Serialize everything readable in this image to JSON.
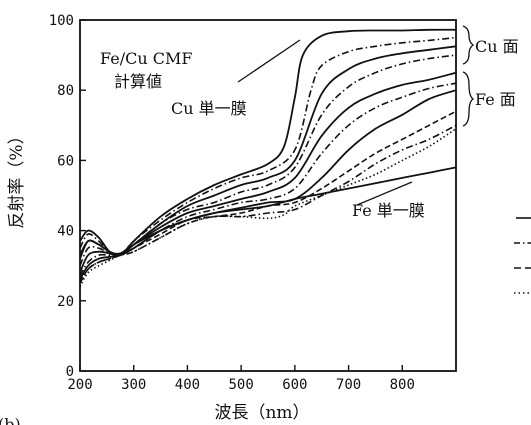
{
  "chart_data": {
    "type": "line",
    "xlabel": "波長（nm）",
    "ylabel": "反射率（%）",
    "xlim": [
      200,
      900
    ],
    "ylim": [
      0,
      100
    ],
    "x_ticks": [
      "200",
      "300",
      "400",
      "500",
      "600",
      "700",
      "800"
    ],
    "y_ticks": [
      "0",
      "20",
      "40",
      "60",
      "80",
      "100"
    ],
    "grid": false,
    "annotations": {
      "computed": "Fe/Cu CMF",
      "computed_line2": "計算値",
      "cu_single": "Cu 単一膜",
      "fe_single": "Fe 単一膜",
      "cu_side": "Cu 面",
      "fe_side": "Fe 面",
      "panel": "(b)"
    },
    "series": [
      {
        "style": "solid",
        "x": [
          200,
          215,
          235,
          255,
          275,
          300,
          350,
          400,
          450,
          500,
          550,
          580,
          600,
          615,
          650,
          700,
          750,
          800,
          850,
          900
        ],
        "y": [
          37,
          40,
          38,
          34,
          33,
          37,
          44,
          49,
          53,
          56,
          59,
          64,
          78,
          90,
          95.5,
          96.8,
          97,
          97,
          97.2,
          97.2
        ]
      },
      {
        "style": "dashdot",
        "x": [
          200,
          215,
          235,
          255,
          275,
          300,
          350,
          400,
          450,
          500,
          550,
          600,
          630,
          650,
          700,
          750,
          800,
          850,
          900
        ],
        "y": [
          35,
          39,
          37,
          34,
          33,
          37,
          43,
          48,
          52,
          55,
          57,
          63,
          80,
          87,
          91,
          92.5,
          93.5,
          94.2,
          95
        ]
      },
      {
        "style": "solid",
        "x": [
          200,
          215,
          235,
          255,
          275,
          300,
          350,
          400,
          450,
          500,
          550,
          600,
          650,
          700,
          750,
          800,
          850,
          900
        ],
        "y": [
          32,
          37,
          36,
          34,
          33,
          36,
          42,
          47,
          50,
          53,
          55,
          60,
          79,
          86,
          89,
          90.5,
          91.5,
          92.5
        ]
      },
      {
        "style": "dashdot",
        "x": [
          200,
          215,
          235,
          255,
          275,
          300,
          350,
          400,
          450,
          500,
          550,
          600,
          650,
          700,
          750,
          800,
          850,
          900
        ],
        "y": [
          30,
          35,
          35,
          33.5,
          33,
          36,
          42,
          46,
          48,
          51,
          53,
          58,
          73,
          81,
          85,
          87.5,
          89,
          90
        ]
      },
      {
        "style": "solid",
        "x": [
          200,
          215,
          235,
          255,
          275,
          300,
          350,
          400,
          450,
          500,
          550,
          600,
          650,
          700,
          750,
          800,
          850,
          900
        ],
        "y": [
          28,
          33,
          34,
          33.5,
          33,
          36,
          41,
          45,
          47,
          49,
          51,
          55,
          67,
          75,
          79,
          81.5,
          83,
          85
        ]
      },
      {
        "style": "dashdot",
        "x": [
          200,
          215,
          235,
          255,
          275,
          300,
          350,
          400,
          450,
          500,
          550,
          600,
          650,
          700,
          750,
          800,
          850,
          900
        ],
        "y": [
          27,
          31,
          33,
          33,
          33,
          35,
          40,
          44,
          46,
          48,
          49,
          52,
          62,
          70,
          75,
          78,
          80.5,
          82
        ]
      },
      {
        "style": "solid",
        "x": [
          200,
          215,
          235,
          255,
          275,
          300,
          350,
          400,
          450,
          500,
          550,
          600,
          650,
          700,
          750,
          800,
          850,
          900
        ],
        "y": [
          26,
          30,
          32,
          32.5,
          33,
          35,
          40,
          43,
          45,
          46.5,
          48,
          49,
          55,
          63,
          69,
          73,
          77.5,
          80
        ]
      },
      {
        "style": "dashed",
        "x": [
          200,
          215,
          235,
          255,
          275,
          300,
          350,
          400,
          450,
          500,
          550,
          600,
          650,
          700,
          750,
          800,
          850,
          900
        ],
        "y": [
          25,
          29,
          31,
          32,
          33,
          35,
          39,
          43,
          44,
          45,
          47,
          48,
          52,
          57,
          62,
          66,
          70,
          74
        ]
      },
      {
        "style": "dashdot",
        "x": [
          200,
          215,
          235,
          255,
          275,
          300,
          350,
          400,
          450,
          500,
          550,
          600,
          650,
          700,
          750,
          800,
          850,
          900
        ],
        "y": [
          25,
          29,
          31,
          32,
          33,
          34,
          38,
          42,
          44,
          44,
          45,
          46,
          50,
          54,
          59,
          63,
          66,
          70
        ]
      },
      {
        "style": "dotted",
        "x": [
          200,
          215,
          235,
          255,
          275,
          300,
          350,
          400,
          450,
          500,
          550,
          580,
          600,
          650,
          700,
          750,
          800,
          850,
          900
        ],
        "y": [
          24,
          28,
          30,
          31.5,
          33,
          34,
          38,
          42,
          44,
          44,
          43.5,
          44.5,
          47,
          50,
          53,
          56,
          60,
          64,
          69
        ]
      },
      {
        "style": "solid",
        "x": [
          200,
          215,
          235,
          255,
          275,
          300,
          350,
          400,
          450,
          500,
          550,
          600,
          650,
          700,
          750,
          800,
          850,
          900
        ],
        "y": [
          33,
          37,
          36,
          34,
          33.5,
          36,
          40,
          43,
          45,
          46,
          47,
          49,
          50.5,
          52,
          53.5,
          55,
          56.5,
          58
        ]
      }
    ]
  }
}
